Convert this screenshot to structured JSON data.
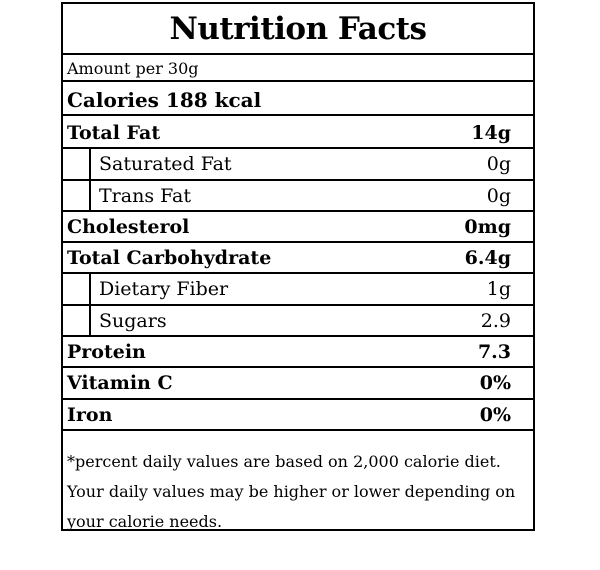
{
  "label": {
    "title": "Nutrition Facts",
    "amount_per": "Amount per 30g",
    "calories": "Calories 188 kcal",
    "rows": [
      {
        "name": "Total Fat",
        "amount": "14g",
        "style": "bold"
      },
      {
        "name": "Saturated Fat",
        "amount": "0g",
        "style": "sub"
      },
      {
        "name": "Trans Fat",
        "amount": "0g",
        "style": "sub"
      },
      {
        "name": "Cholesterol",
        "amount": "0mg",
        "style": "bold"
      },
      {
        "name": "Total Carbohydrate",
        "amount": "6.4g",
        "style": "bold"
      },
      {
        "name": "Dietary Fiber",
        "amount": "1g",
        "style": "sub"
      },
      {
        "name": "Sugars",
        "amount": "2.9",
        "style": "sub"
      },
      {
        "name": "Protein",
        "amount": "7.3",
        "style": "bold"
      },
      {
        "name": "Vitamin C",
        "amount": "0%",
        "style": "bold"
      },
      {
        "name": "Iron",
        "amount": "0%",
        "style": "bold"
      }
    ],
    "footnote": "*percent daily values are based on 2,000 calorie diet. Your daily values may be higher or lower depending on your calorie needs."
  }
}
